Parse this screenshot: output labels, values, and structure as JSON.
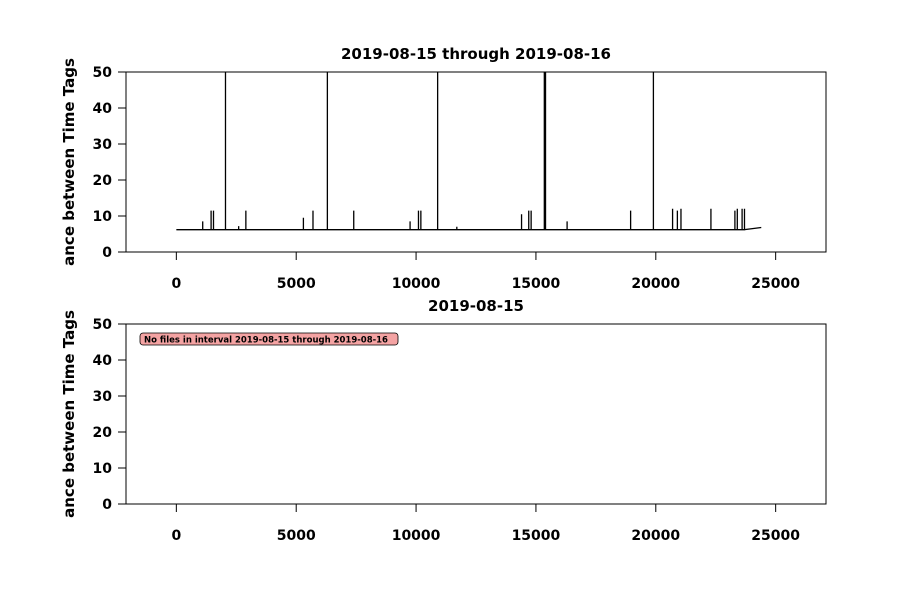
{
  "chart_data": [
    {
      "type": "line",
      "title": "2019-08-15 through 2019-08-16",
      "y_label": "ance between Time Tags",
      "xlim": [
        -2100,
        27100
      ],
      "ylim": [
        0,
        50
      ],
      "xticks": [
        0,
        5000,
        10000,
        15000,
        20000,
        25000
      ],
      "yticks": [
        0,
        10,
        20,
        30,
        40,
        50
      ],
      "series": [
        {
          "color": "#000000",
          "x": [
            0,
            1100,
            1100,
            1100,
            1450,
            1450,
            1450,
            1550,
            1550,
            1550,
            2050,
            2050,
            2050,
            2600,
            2600,
            2600,
            2900,
            2900,
            2900,
            5300,
            5300,
            5300,
            5700,
            5700,
            5700,
            6300,
            6300,
            6300,
            7400,
            7400,
            7400,
            9750,
            9750,
            9750,
            10100,
            10100,
            10100,
            10200,
            10200,
            10200,
            10900,
            10900,
            10900,
            11700,
            11700,
            11700,
            14400,
            14400,
            14400,
            14700,
            14700,
            14700,
            14800,
            14800,
            14800,
            15350,
            15350,
            15350,
            15400,
            15400,
            15400,
            16300,
            16300,
            16300,
            18950,
            18950,
            18950,
            19900,
            19900,
            19900,
            20700,
            20700,
            20700,
            20900,
            20900,
            20900,
            21050,
            21050,
            21050,
            22300,
            22300,
            22300,
            23300,
            23300,
            23300,
            23400,
            23400,
            23400,
            23600,
            23600,
            23600,
            23700,
            23700,
            23700,
            24400
          ],
          "values": [
            6.2,
            6.2,
            8.5,
            6.2,
            6.2,
            11.5,
            6.2,
            6.2,
            11.5,
            6.2,
            6.2,
            50,
            6.2,
            6.2,
            7.2,
            6.2,
            6.2,
            11.5,
            6.2,
            6.2,
            9.5,
            6.2,
            6.2,
            11.5,
            6.2,
            6.2,
            50,
            6.2,
            6.2,
            11.5,
            6.2,
            6.2,
            8.5,
            6.2,
            6.2,
            11.5,
            6.2,
            6.2,
            11.5,
            6.2,
            6.2,
            50,
            6.2,
            6.2,
            7,
            6.2,
            6.2,
            10.5,
            6.2,
            6.2,
            11.5,
            6.2,
            6.2,
            11.5,
            6.2,
            6.2,
            50,
            6.2,
            6.2,
            50,
            6.2,
            6.2,
            8.5,
            6.2,
            6.2,
            11.5,
            6.2,
            6.2,
            50,
            6.2,
            6.2,
            12,
            6.2,
            6.2,
            11.5,
            6.2,
            6.2,
            12,
            6.2,
            6.2,
            12,
            6.2,
            6.2,
            11.5,
            6.2,
            6.2,
            12,
            6.2,
            6.2,
            12,
            6.2,
            6.2,
            12,
            6.2,
            6.8
          ]
        }
      ]
    },
    {
      "type": "line",
      "title": "2019-08-15",
      "y_label": "ance between Time Tags",
      "xlim": [
        -2100,
        27100
      ],
      "ylim": [
        0,
        50
      ],
      "xticks": [
        0,
        5000,
        10000,
        15000,
        20000,
        25000
      ],
      "yticks": [
        0,
        10,
        20,
        30,
        40,
        50
      ],
      "annotation": "No files in interval 2019-08-15 through 2019-08-16",
      "series": []
    }
  ]
}
